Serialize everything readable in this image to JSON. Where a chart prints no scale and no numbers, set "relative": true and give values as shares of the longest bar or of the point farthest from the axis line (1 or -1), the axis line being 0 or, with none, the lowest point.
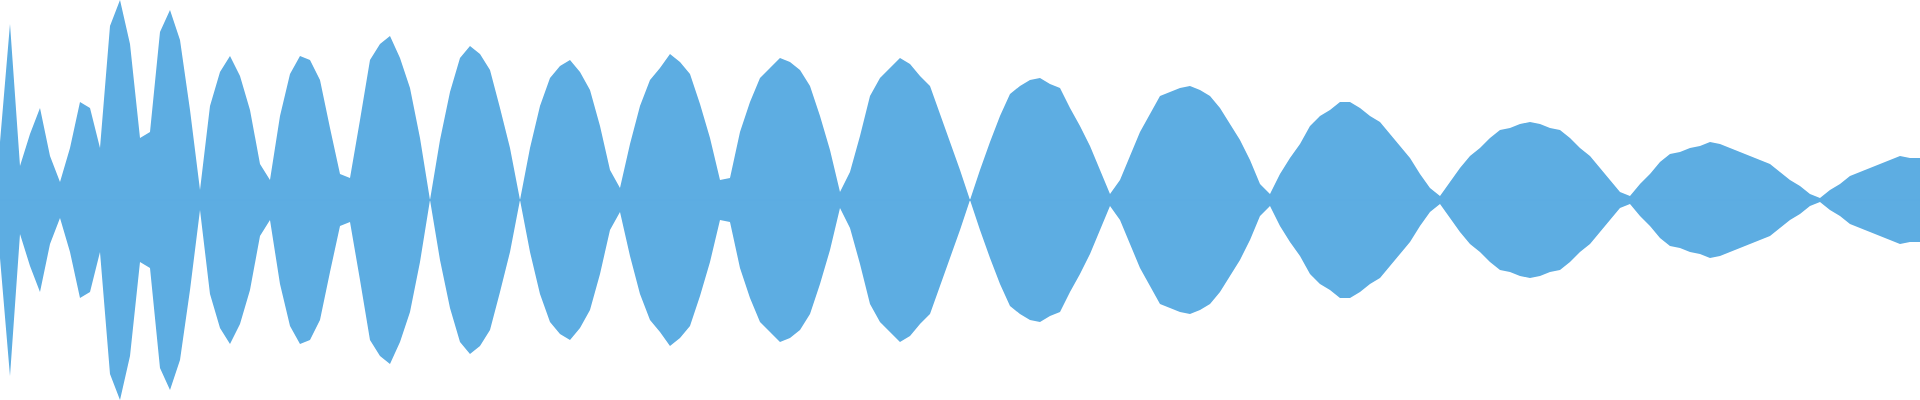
{
  "chart_data": {
    "type": "area",
    "relative": true,
    "categories": [
      null,
      null,
      null,
      null,
      null,
      null,
      null,
      null,
      null,
      null,
      null,
      null,
      null,
      null,
      null,
      null,
      null,
      null,
      null,
      null,
      null,
      null,
      null,
      null,
      null,
      null,
      null,
      null,
      null,
      null,
      null,
      null,
      null,
      null,
      null,
      null,
      null,
      null,
      null,
      null,
      null,
      null,
      null,
      null,
      null,
      null,
      null,
      null,
      null,
      null,
      null,
      null,
      null,
      null,
      null,
      null,
      null,
      null,
      null,
      null,
      null,
      null,
      null,
      null,
      null,
      null,
      null,
      null,
      null,
      null,
      null,
      null,
      null,
      null,
      null,
      null,
      null,
      null,
      null,
      null,
      null,
      null,
      null,
      null,
      null,
      null,
      null,
      null,
      null,
      null,
      null,
      null,
      null,
      null,
      null,
      null,
      null,
      null,
      null,
      null,
      null,
      null,
      null,
      null,
      null,
      null,
      null,
      null,
      null,
      null,
      null,
      null,
      null,
      null,
      null,
      null,
      null,
      null,
      null,
      null,
      null,
      null,
      null,
      null,
      null,
      null,
      null,
      null,
      null,
      null,
      null,
      null,
      null,
      null,
      null,
      null,
      null,
      null,
      null,
      null,
      null,
      null,
      null,
      null,
      null,
      null,
      null,
      null,
      null,
      null,
      null,
      null,
      null,
      null,
      null,
      null,
      null,
      null,
      null,
      null,
      null,
      null,
      null,
      null,
      null,
      null,
      null,
      null,
      null,
      null,
      null,
      null,
      null,
      null,
      null,
      null,
      null,
      null,
      null,
      null,
      null,
      null,
      null,
      null,
      null,
      null,
      null,
      null,
      null,
      null,
      null,
      null,
      null
    ],
    "ref_lines": [
      {
        "axis": "y",
        "value": 0,
        "color": "#5dade2"
      }
    ],
    "series": [
      {
        "color": "#5dade2",
        "values": [
          0.29,
          0.88,
          0.17,
          0.33,
          0.46,
          0.22,
          0.09,
          0.26,
          0.49,
          0.46,
          0.26,
          0.87,
          1,
          0.78,
          0.31,
          0.34,
          0.84,
          0.95,
          0.8,
          0.45,
          0.05,
          0.47,
          0.64,
          0.72,
          0.62,
          0.45,
          0.18,
          0.1,
          0.42,
          0.63,
          0.72,
          0.7,
          0.6,
          0.36,
          0.13,
          0.11,
          0.4,
          0.7,
          0.78,
          0.82,
          0.71,
          0.56,
          0.31,
          0,
          0.3,
          0.54,
          0.71,
          0.77,
          0.73,
          0.65,
          0.46,
          0.26,
          0,
          0.26,
          0.47,
          0.61,
          0.67,
          0.7,
          0.64,
          0.55,
          0.37,
          0.15,
          0.06,
          0.28,
          0.47,
          0.6,
          0.66,
          0.73,
          0.69,
          0.63,
          0.48,
          0.31,
          0.1,
          0.11,
          0.34,
          0.49,
          0.61,
          0.66,
          0.71,
          0.69,
          0.65,
          0.57,
          0.42,
          0.25,
          0.04,
          0.14,
          0.32,
          0.52,
          0.61,
          0.66,
          0.71,
          0.68,
          0.62,
          0.57,
          0.43,
          0.29,
          0.15,
          0,
          0.15,
          0.29,
          0.42,
          0.53,
          0.57,
          0.6,
          0.61,
          0.58,
          0.56,
          0.46,
          0.37,
          0.27,
          0.15,
          0.03,
          0.1,
          0.22,
          0.34,
          0.43,
          0.52,
          0.54,
          0.56,
          0.57,
          0.55,
          0.52,
          0.46,
          0.38,
          0.3,
          0.2,
          0.08,
          0.03,
          0.13,
          0.21,
          0.28,
          0.37,
          0.42,
          0.45,
          0.49,
          0.49,
          0.46,
          0.42,
          0.39,
          0.33,
          0.27,
          0.21,
          0.13,
          0.06,
          0.02,
          0.09,
          0.16,
          0.22,
          0.26,
          0.31,
          0.35,
          0.36,
          0.38,
          0.39,
          0.38,
          0.36,
          0.35,
          0.31,
          0.26,
          0.22,
          0.16,
          0.1,
          0.04,
          0.02,
          0.08,
          0.13,
          0.19,
          0.23,
          0.24,
          0.26,
          0.27,
          0.29,
          0.28,
          0.26,
          0.24,
          0.22,
          0.2,
          0.18,
          0.14,
          0.1,
          0.07,
          0.03,
          0.01,
          0.05,
          0.08,
          0.12,
          0.14,
          0.16,
          0.18,
          0.2,
          0.22,
          0.21,
          0.21
        ]
      },
      {
        "color": "#5dade2",
        "values": [
          -0.29,
          -0.88,
          -0.17,
          -0.33,
          -0.46,
          -0.22,
          -0.09,
          -0.26,
          -0.49,
          -0.46,
          -0.26,
          -0.87,
          -1,
          -0.78,
          -0.31,
          -0.34,
          -0.84,
          -0.95,
          -0.8,
          -0.45,
          -0.05,
          -0.47,
          -0.64,
          -0.72,
          -0.62,
          -0.45,
          -0.18,
          -0.1,
          -0.42,
          -0.63,
          -0.72,
          -0.7,
          -0.6,
          -0.36,
          -0.13,
          -0.11,
          -0.4,
          -0.7,
          -0.78,
          -0.82,
          -0.71,
          -0.56,
          -0.31,
          0,
          -0.3,
          -0.54,
          -0.71,
          -0.77,
          -0.73,
          -0.65,
          -0.46,
          -0.26,
          0,
          -0.26,
          -0.47,
          -0.61,
          -0.67,
          -0.7,
          -0.64,
          -0.55,
          -0.37,
          -0.15,
          -0.06,
          -0.28,
          -0.47,
          -0.6,
          -0.66,
          -0.73,
          -0.69,
          -0.63,
          -0.48,
          -0.31,
          -0.1,
          -0.11,
          -0.34,
          -0.49,
          -0.61,
          -0.66,
          -0.71,
          -0.69,
          -0.65,
          -0.57,
          -0.42,
          -0.25,
          -0.04,
          -0.14,
          -0.32,
          -0.52,
          -0.61,
          -0.66,
          -0.71,
          -0.68,
          -0.62,
          -0.57,
          -0.43,
          -0.29,
          -0.15,
          0,
          -0.15,
          -0.29,
          -0.42,
          -0.53,
          -0.57,
          -0.6,
          -0.61,
          -0.58,
          -0.56,
          -0.46,
          -0.37,
          -0.27,
          -0.15,
          -0.03,
          -0.1,
          -0.22,
          -0.34,
          -0.43,
          -0.52,
          -0.54,
          -0.56,
          -0.57,
          -0.55,
          -0.52,
          -0.46,
          -0.38,
          -0.3,
          -0.2,
          -0.08,
          -0.03,
          -0.13,
          -0.21,
          -0.28,
          -0.37,
          -0.42,
          -0.45,
          -0.49,
          -0.49,
          -0.46,
          -0.42,
          -0.39,
          -0.33,
          -0.27,
          -0.21,
          -0.13,
          -0.06,
          -0.02,
          -0.09,
          -0.16,
          -0.22,
          -0.26,
          -0.31,
          -0.35,
          -0.36,
          -0.38,
          -0.39,
          -0.38,
          -0.36,
          -0.35,
          -0.31,
          -0.26,
          -0.22,
          -0.16,
          -0.1,
          -0.04,
          -0.02,
          -0.08,
          -0.13,
          -0.19,
          -0.23,
          -0.24,
          -0.26,
          -0.27,
          -0.29,
          -0.28,
          -0.26,
          -0.24,
          -0.22,
          -0.2,
          -0.18,
          -0.14,
          -0.1,
          -0.07,
          -0.03,
          -0.01,
          -0.05,
          -0.08,
          -0.12,
          -0.14,
          -0.16,
          -0.18,
          -0.2,
          -0.22,
          -0.21,
          -0.21
        ]
      }
    ]
  }
}
